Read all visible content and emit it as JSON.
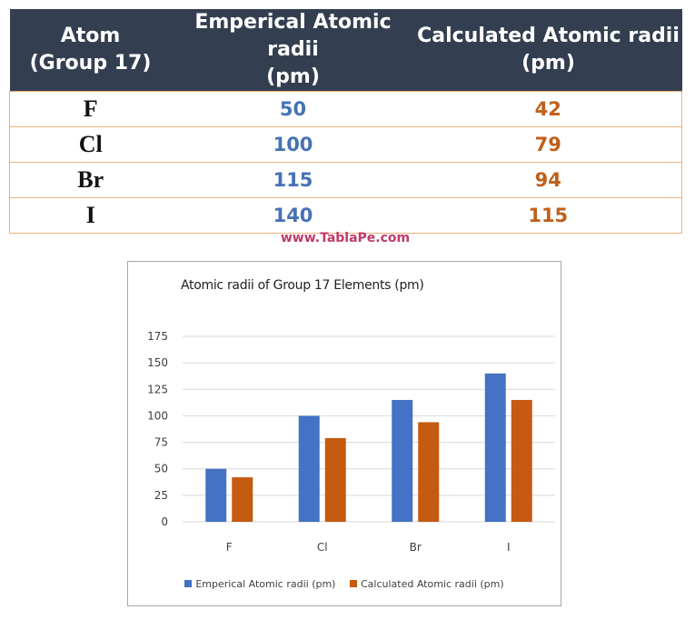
{
  "table": {
    "headers": [
      "Atom\n(Group 17)",
      "Emperical Atomic radii\n(pm)",
      "Calculated Atomic radii\n(pm)"
    ],
    "rows": [
      {
        "atom": "F",
        "empirical": "50",
        "calculated": "42"
      },
      {
        "atom": "Cl",
        "empirical": "100",
        "calculated": "79"
      },
      {
        "atom": "Br",
        "empirical": "115",
        "calculated": "94"
      },
      {
        "atom": "I",
        "empirical": "140",
        "calculated": "115"
      }
    ]
  },
  "watermark": "www.TablaPe.com",
  "colors": {
    "header_bg": "#333f50",
    "empirical": "#4472c4",
    "calculated": "#c55a11",
    "row_border": "#f0b07a",
    "watermark": "#c0396b"
  },
  "chart_data": {
    "type": "bar",
    "title": "Atomic radii of Group 17 Elements (pm)",
    "categories": [
      "F",
      "Cl",
      "Br",
      "I"
    ],
    "series": [
      {
        "name": "Emperical Atomic radii (pm)",
        "values": [
          50,
          100,
          115,
          140
        ],
        "color": "#4472c4"
      },
      {
        "name": "Calculated Atomic radii (pm)",
        "values": [
          42,
          79,
          94,
          115
        ],
        "color": "#c55a11"
      }
    ],
    "yticks": [
      "0",
      "25",
      "50",
      "75",
      "100",
      "125",
      "150",
      "175"
    ],
    "ylim": [
      0,
      175
    ],
    "xlabel": "",
    "ylabel": "",
    "grid": true,
    "legend": "bottom"
  }
}
